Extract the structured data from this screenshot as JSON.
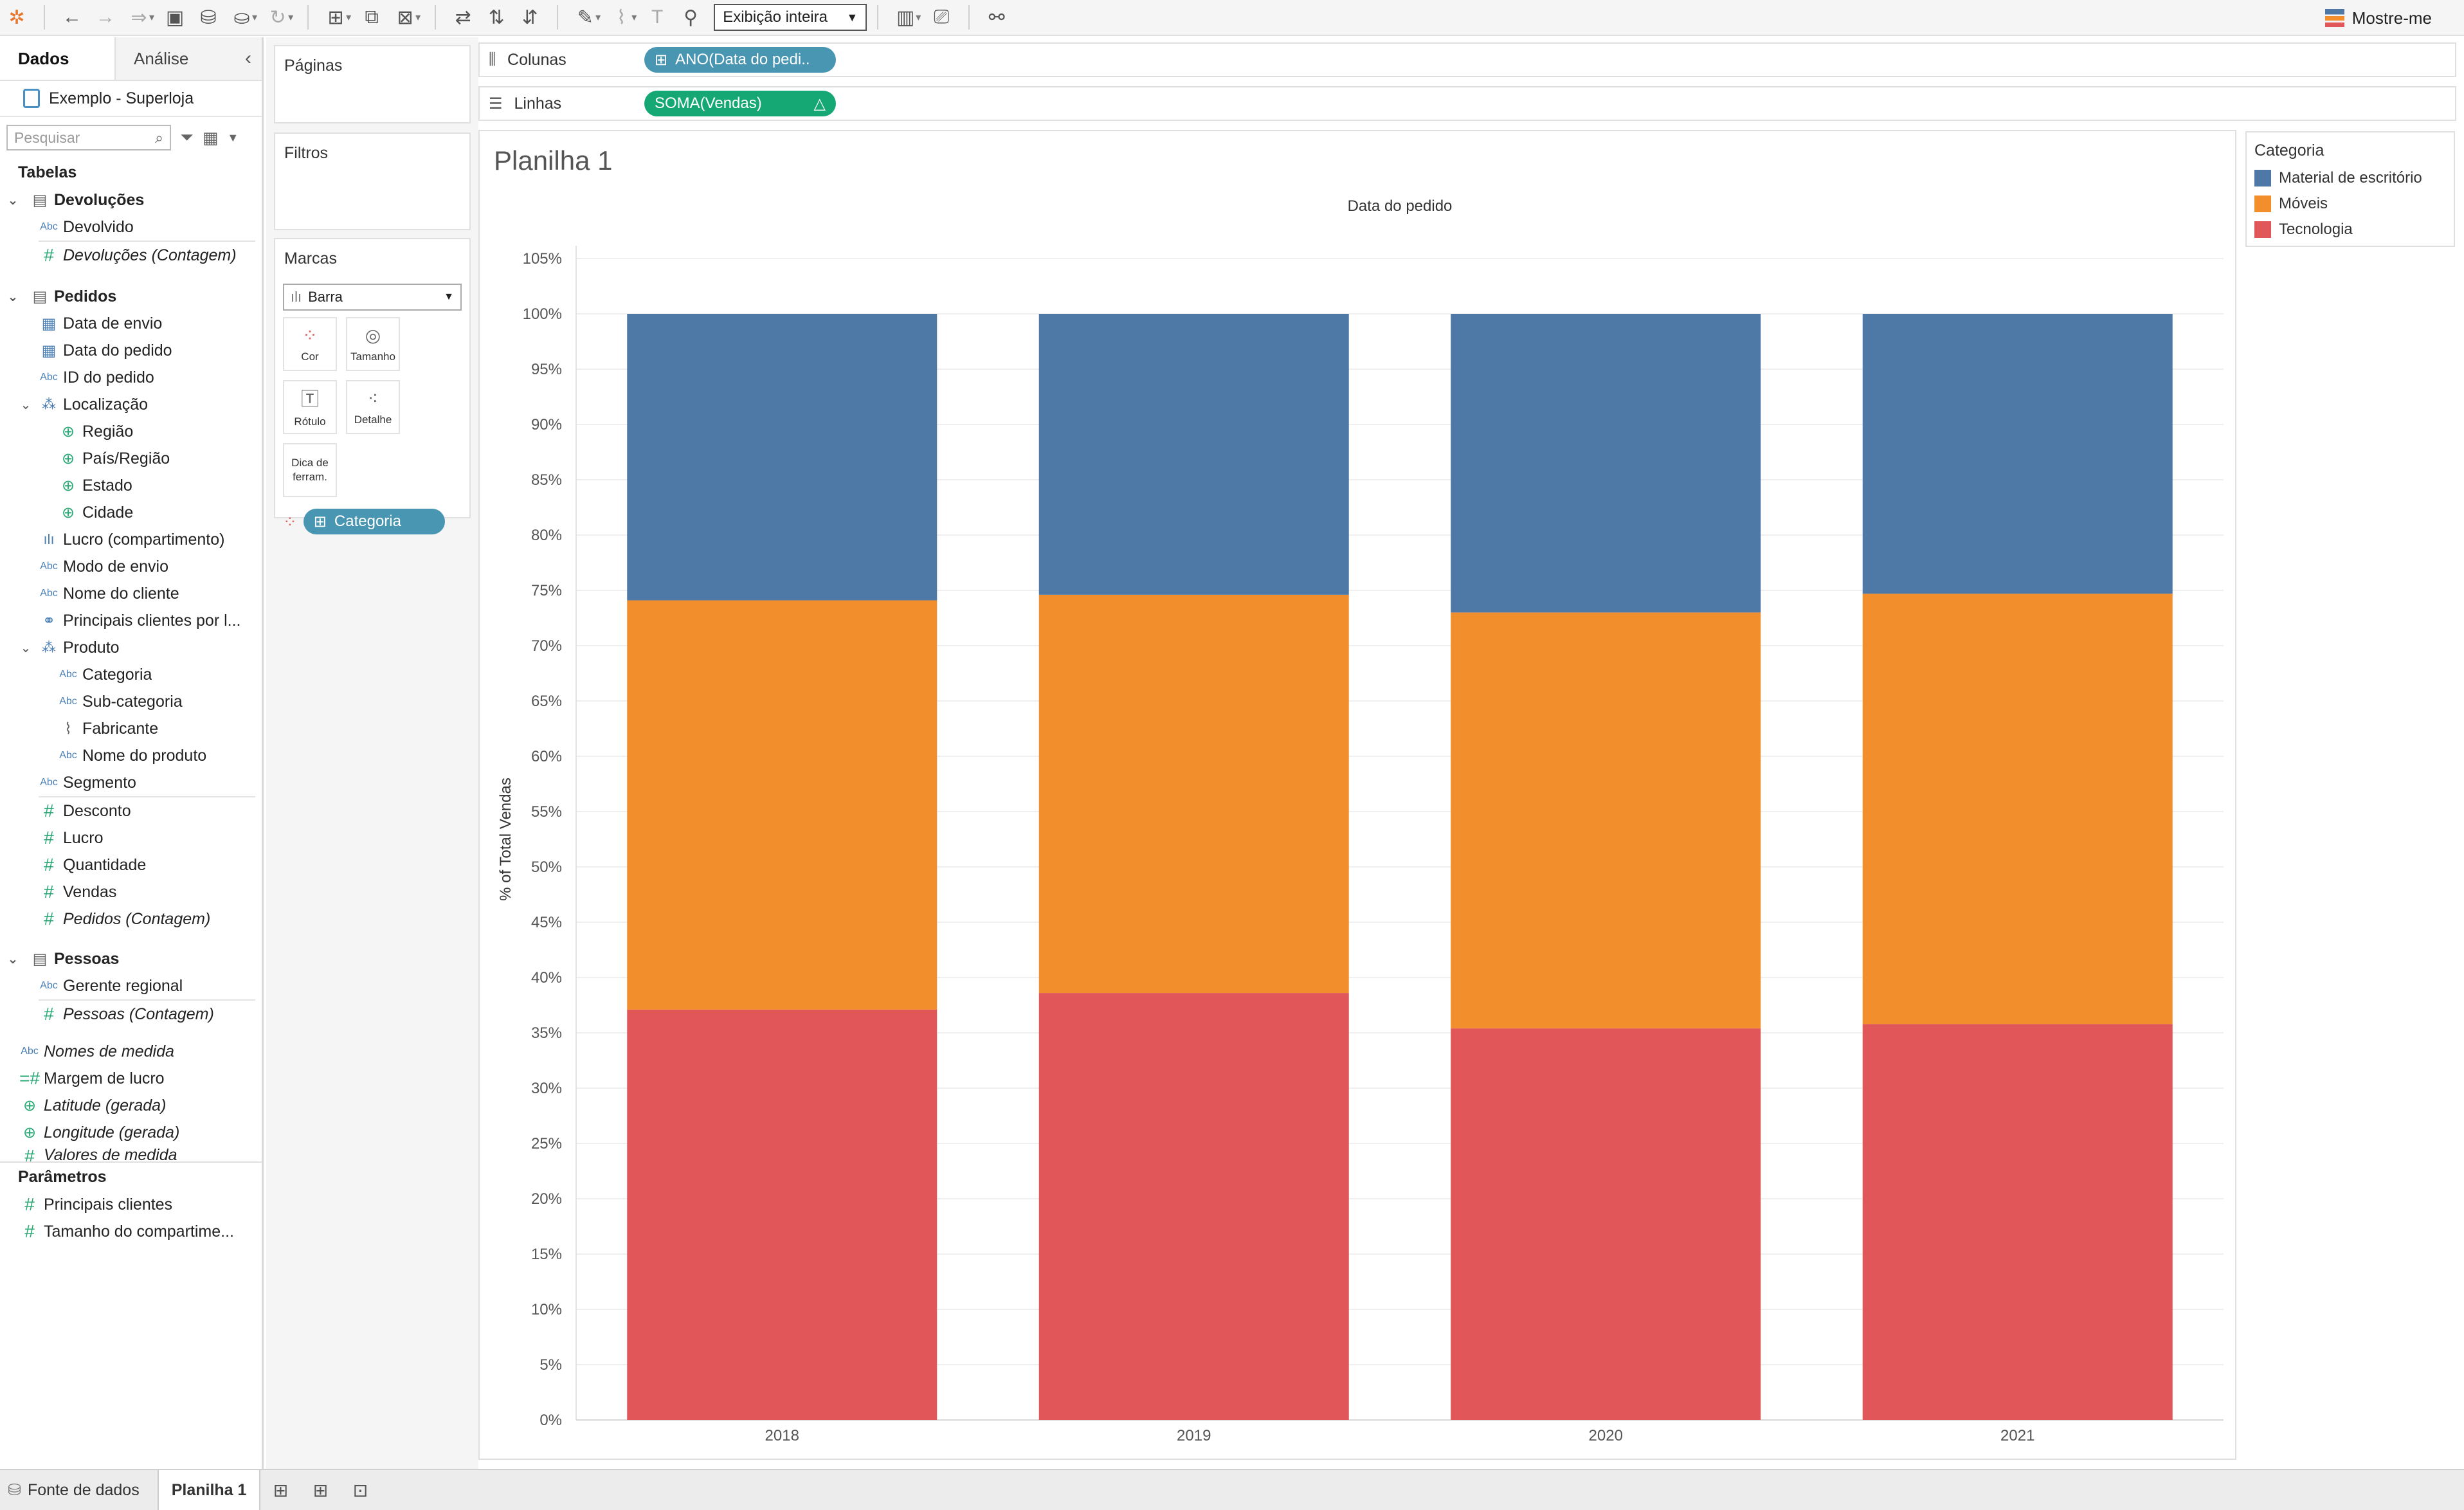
{
  "toolbar": {
    "fit_label": "Exibição inteira",
    "show_me": "Mostre-me"
  },
  "datapane": {
    "tab_data": "Dados",
    "tab_analysis": "Análise",
    "datasource": "Exemplo - Superloja",
    "search_placeholder": "Pesquisar",
    "tables_header": "Tabelas",
    "devolucoes": {
      "name": "Devoluções",
      "f1": "Devolvido",
      "f2": "Devoluções (Contagem)"
    },
    "pedidos": {
      "name": "Pedidos",
      "f": [
        "Data de envio",
        "Data do pedido",
        "ID do pedido",
        "Localização",
        "Região",
        "País/Região",
        "Estado",
        "Cidade",
        "Lucro (compartimento)",
        "Modo de envio",
        "Nome do cliente",
        "Principais clientes por l...",
        "Produto",
        "Categoria",
        "Sub-categoria",
        "Fabricante",
        "Nome do produto",
        "Segmento",
        "Desconto",
        "Lucro",
        "Quantidade",
        "Vendas",
        "Pedidos (Contagem)"
      ]
    },
    "pessoas": {
      "name": "Pessoas",
      "f1": "Gerente regional",
      "f2": "Pessoas (Contagem)"
    },
    "extra": [
      "Nomes de medida",
      "Margem de lucro",
      "Latitude (gerada)",
      "Longitude (gerada)",
      "Valores de medida"
    ],
    "params_header": "Parâmetros",
    "params": [
      "Principais clientes",
      "Tamanho do comparti­me..."
    ]
  },
  "shelves": {
    "pages": "Páginas",
    "filters": "Filtros",
    "marks": "Marcas",
    "mark_type": "Barra",
    "mark_buttons": [
      "Cor",
      "Tamanho",
      "Rótulo",
      "Detalhe",
      "Dica de ferram."
    ],
    "mark_pill": "Categoria",
    "columns_label": "Colunas",
    "columns_pill": "ANO(Data do pedi..",
    "rows_label": "Linhas",
    "rows_pill": "SOMA(Vendas)"
  },
  "sheet": {
    "title": "Planilha 1"
  },
  "legend": {
    "title": "Categoria",
    "items": [
      {
        "label": "Material de escritório",
        "color": "#4e79a7"
      },
      {
        "label": "Móveis",
        "color": "#f28e2b"
      },
      {
        "label": "Tecnologia",
        "color": "#e15759"
      }
    ]
  },
  "bottom": {
    "datasource_tab": "Fonte de dados",
    "sheet_tab": "Planilha 1"
  },
  "chart_data": {
    "type": "bar",
    "stacked": true,
    "title": "Data do pedido",
    "xlabel": "",
    "ylabel": "% of Total Vendas",
    "categories": [
      "2018",
      "2019",
      "2020",
      "2021"
    ],
    "series": [
      {
        "name": "Tecnologia",
        "color": "#e15759",
        "values": [
          37.1,
          38.6,
          35.4,
          35.8
        ]
      },
      {
        "name": "Móveis",
        "color": "#f28e2b",
        "values": [
          37.0,
          36.0,
          37.6,
          38.9
        ]
      },
      {
        "name": "Material de escritório",
        "color": "#4e79a7",
        "values": [
          25.9,
          25.4,
          27.0,
          25.3
        ]
      }
    ],
    "ylim": [
      0,
      105
    ],
    "yticks": [
      0,
      5,
      10,
      15,
      20,
      25,
      30,
      35,
      40,
      45,
      50,
      55,
      60,
      65,
      70,
      75,
      80,
      85,
      90,
      95,
      100,
      105
    ],
    "grid": true
  }
}
